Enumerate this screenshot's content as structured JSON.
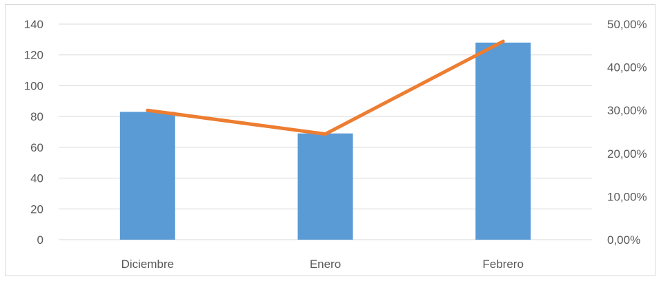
{
  "chart_data": {
    "type": "bar",
    "categories": [
      "Diciembre",
      "Enero",
      "Febrero"
    ],
    "series": [
      {
        "type": "bar",
        "axis": "primary",
        "color": "#5b9bd5",
        "values": [
          83,
          69,
          128
        ]
      },
      {
        "type": "line",
        "axis": "secondary",
        "color": "#ed7d31",
        "values": [
          0.3,
          0.245,
          0.46
        ]
      }
    ],
    "y_axis": {
      "min": 0,
      "max": 140,
      "step": 20,
      "tick_labels": [
        "0",
        "20",
        "40",
        "60",
        "80",
        "100",
        "120",
        "140"
      ]
    },
    "y2_axis": {
      "min": 0,
      "max": 0.5,
      "step": 0.1,
      "tick_labels": [
        "0,00%",
        "10,00%",
        "20,00%",
        "30,00%",
        "40,00%",
        "50,00%"
      ]
    },
    "grid": true,
    "legend": "none"
  }
}
